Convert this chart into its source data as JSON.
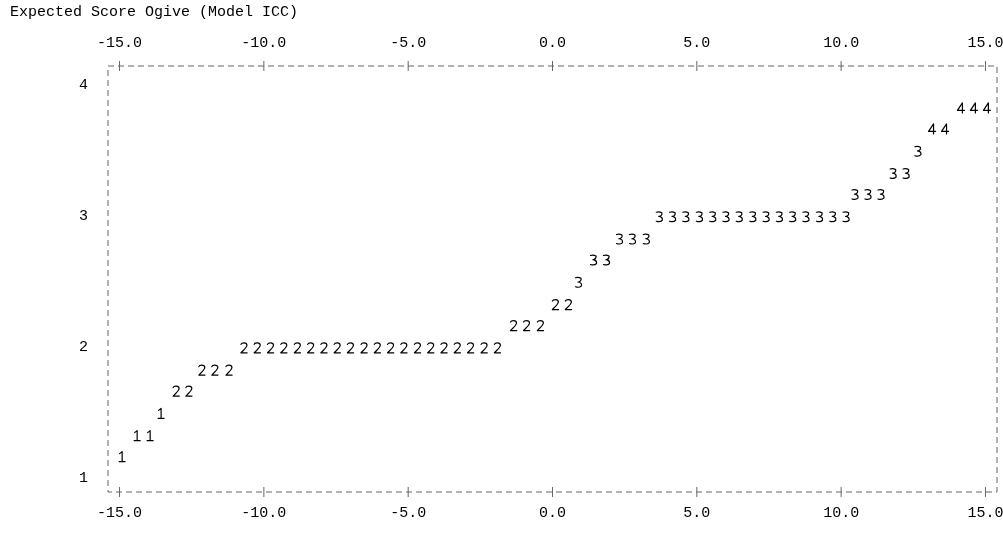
{
  "chart_data": {
    "type": "scatter",
    "title": "Expected Score Ogive (Model ICC)",
    "xlim": [
      -15.4,
      15.4
    ],
    "xticks": [
      {
        "value": -15,
        "label": "-15.0"
      },
      {
        "value": -10,
        "label": "-10.0"
      },
      {
        "value": -5,
        "label": "-5.0"
      },
      {
        "value": 0,
        "label": "0.0"
      },
      {
        "value": 5,
        "label": "5.0"
      },
      {
        "value": 10,
        "label": "10.0"
      },
      {
        "value": 15,
        "label": "15.0"
      }
    ],
    "x2lim": [
      -15.4,
      15.4
    ],
    "x2ticks": [
      {
        "value": -15,
        "label": "-15.0"
      },
      {
        "value": -10,
        "label": "-10.0"
      },
      {
        "value": -5,
        "label": "-5.0"
      },
      {
        "value": 0,
        "label": "0.0"
      },
      {
        "value": 5,
        "label": "5.0"
      },
      {
        "value": 10,
        "label": "10.0"
      },
      {
        "value": 15,
        "label": "15.0"
      }
    ],
    "ylim": [
      0.9,
      4.15
    ],
    "yticks": [
      1,
      2,
      3,
      4
    ],
    "grid": false,
    "legend": false,
    "series": [
      {
        "name": "1",
        "color": "#000000",
        "x": [
          -14.91,
          -14.39,
          -13.94,
          -13.56
        ],
        "values": [
          1.17,
          1.33,
          1.33,
          1.5
        ]
      },
      {
        "name": "2",
        "color": "#000000",
        "x": [
          -13.04,
          -12.6,
          -12.15,
          -11.7,
          -11.21,
          -10.69,
          -10.23,
          -9.77,
          -9.31,
          -8.84,
          -8.38,
          -7.92,
          -7.46,
          -7.0,
          -6.53,
          -6.07,
          -5.61,
          -5.15,
          -4.68,
          -4.22,
          -3.76,
          -3.3,
          -2.84,
          -2.37,
          -1.91,
          -1.35,
          -0.9,
          -0.42,
          0.1,
          0.55
        ],
        "values": [
          1.67,
          1.67,
          1.83,
          1.83,
          1.83,
          2,
          2,
          2,
          2,
          2,
          2,
          2,
          2,
          2,
          2,
          2,
          2,
          2,
          2,
          2,
          2,
          2,
          2,
          2,
          2,
          2.17,
          2.17,
          2.17,
          2.33,
          2.33
        ]
      },
      {
        "name": "3",
        "color": "#000000",
        "x": [
          0.9,
          1.42,
          1.87,
          2.32,
          2.77,
          3.25,
          3.7,
          4.16,
          4.62,
          5.09,
          5.55,
          6.01,
          6.47,
          6.94,
          7.4,
          7.86,
          8.32,
          8.78,
          9.25,
          9.71,
          10.17,
          10.48,
          10.93,
          11.38,
          11.8,
          12.25,
          12.66
        ],
        "values": [
          2.5,
          2.67,
          2.67,
          2.83,
          2.83,
          2.83,
          3,
          3,
          3,
          3,
          3,
          3,
          3,
          3,
          3,
          3,
          3,
          3,
          3,
          3,
          3,
          3.17,
          3.17,
          3.17,
          3.33,
          3.33,
          3.5
        ]
      },
      {
        "name": "4",
        "color": "#000000",
        "x": [
          13.15,
          13.6,
          14.15,
          14.6,
          15.05
        ],
        "values": [
          3.67,
          3.67,
          3.83,
          3.83,
          3.83
        ]
      }
    ]
  }
}
